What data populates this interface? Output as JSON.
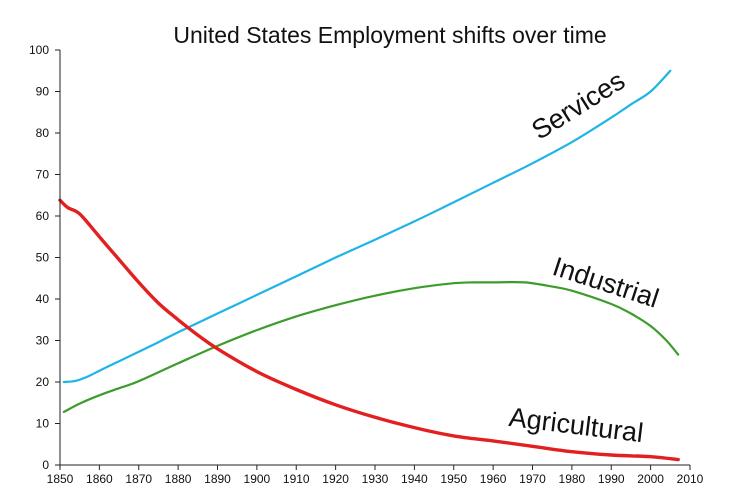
{
  "chart_data": {
    "type": "line",
    "title": "United States Employment shifts over time",
    "xlabel": "",
    "ylabel": "",
    "xlim": [
      1850,
      2010
    ],
    "ylim": [
      0,
      100
    ],
    "x_ticks": [
      1850,
      1860,
      1870,
      1880,
      1890,
      1900,
      1910,
      1920,
      1930,
      1940,
      1950,
      1960,
      1970,
      1980,
      1990,
      2000,
      2010
    ],
    "y_ticks": [
      0,
      10,
      20,
      30,
      40,
      50,
      60,
      70,
      80,
      90,
      100
    ],
    "grid": false,
    "legend": "none",
    "series": [
      {
        "name": "Services",
        "color": "#1fb4e6",
        "x": [
          1851,
          1854,
          1857,
          1860,
          1865,
          1870,
          1875,
          1880,
          1890,
          1900,
          1910,
          1920,
          1930,
          1940,
          1950,
          1960,
          1970,
          1980,
          1990,
          1995,
          2000,
          2005
        ],
        "y": [
          20,
          20.3,
          21.3,
          22.7,
          25,
          27.3,
          29.6,
          32,
          36.5,
          41,
          45.5,
          50,
          54.3,
          58.7,
          63.3,
          68,
          72.7,
          77.8,
          83.7,
          86.9,
          90,
          95
        ]
      },
      {
        "name": "Industrial",
        "color": "#3c9c2c",
        "x": [
          1851,
          1855,
          1860,
          1865,
          1870,
          1880,
          1890,
          1900,
          1910,
          1920,
          1930,
          1940,
          1950,
          1955,
          1960,
          1968,
          1975,
          1980,
          1990,
          1995,
          2000,
          2004,
          2007
        ],
        "y": [
          12.8,
          14.8,
          16.8,
          18.5,
          20.2,
          24.5,
          28.7,
          32.5,
          35.8,
          38.5,
          40.8,
          42.6,
          43.8,
          44,
          44,
          44,
          43,
          42,
          38.8,
          36.5,
          33.5,
          30,
          26.6
        ]
      },
      {
        "name": "Agricultural",
        "color": "#e32020",
        "x": [
          1850,
          1852,
          1855,
          1860,
          1865,
          1870,
          1875,
          1880,
          1885,
          1890,
          1900,
          1910,
          1920,
          1930,
          1940,
          1950,
          1960,
          1970,
          1980,
          1990,
          2000,
          2007
        ],
        "y": [
          63.8,
          62,
          60.5,
          55,
          49.5,
          44,
          39,
          35,
          31.3,
          28,
          22.5,
          18.2,
          14.5,
          11.5,
          9,
          7,
          5.8,
          4.5,
          3.2,
          2.4,
          2,
          1.3
        ]
      }
    ]
  }
}
